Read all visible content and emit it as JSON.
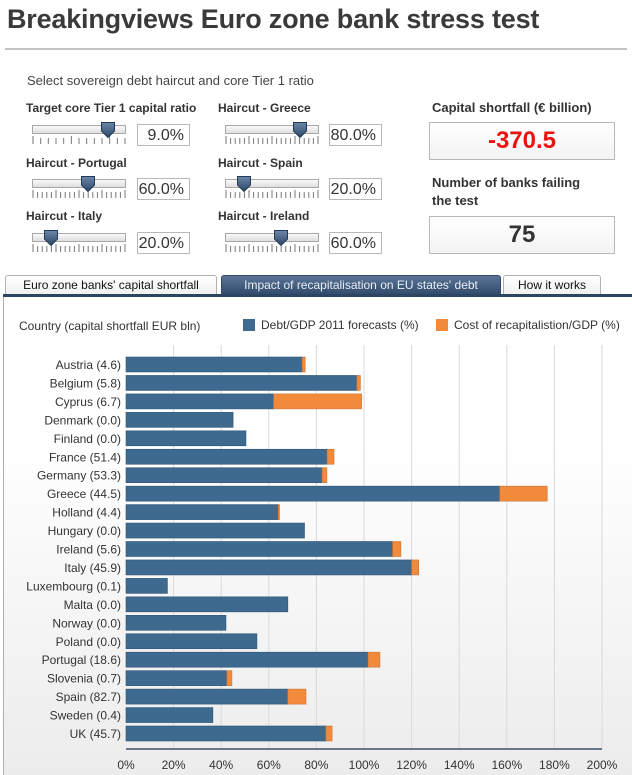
{
  "title": "Breakingviews Euro zone bank stress test",
  "controls": {
    "subtitle": "Select sovereign debt haircut and core Tier 1 ratio",
    "sliders": [
      {
        "label": "Target core Tier 1 capital ratio",
        "value": "9.0%",
        "fraction": 0.81
      },
      {
        "label": "Haircut - Greece",
        "value": "80.0%",
        "fraction": 0.8
      },
      {
        "label": "Haircut - Portugal",
        "value": "60.0%",
        "fraction": 0.6
      },
      {
        "label": "Haircut - Spain",
        "value": "20.0%",
        "fraction": 0.2
      },
      {
        "label": "Haircut - Italy",
        "value": "20.0%",
        "fraction": 0.2
      },
      {
        "label": "Haircut - Ireland",
        "value": "60.0%",
        "fraction": 0.6
      }
    ]
  },
  "results": {
    "shortfall_label": "Capital shortfall (€ billion)",
    "shortfall_value": "-370.5",
    "shortfall_color": "#e8140f",
    "failing_label_line1": "Number of banks failing",
    "failing_label_line2": "the test",
    "failing_value": "75"
  },
  "tabs": [
    {
      "label": "Euro zone banks' capital shortfall",
      "active": false
    },
    {
      "label": "Impact of recapitalisation on EU states' debt",
      "active": true
    },
    {
      "label": "How it works",
      "active": false
    }
  ],
  "colors": {
    "debt": "#3d6a8e",
    "recap": "#f28a3c",
    "accent": "#2f4a6b"
  },
  "chart_data": {
    "type": "bar",
    "orientation": "horizontal",
    "stacked": true,
    "title": "",
    "ylabel": "Country (capital shortfall EUR bln)",
    "xlabel": "",
    "xlim": [
      0,
      200
    ],
    "x_ticks": [
      "0%",
      "20%",
      "40%",
      "60%",
      "80%",
      "100%",
      "120%",
      "140%",
      "160%",
      "180%",
      "200%"
    ],
    "grid": true,
    "legend_position": "top",
    "categories": [
      "Austria (4.6)",
      "Belgium (5.8)",
      "Cyprus (6.7)",
      "Denmark (0.0)",
      "Finland (0.0)",
      "France (51.4)",
      "Germany (53.3)",
      "Greece (44.5)",
      "Holland (4.4)",
      "Hungary (0.0)",
      "Ireland (5.6)",
      "Italy (45.9)",
      "Luxembourg (0.1)",
      "Malta (0.0)",
      "Norway (0.0)",
      "Poland (0.0)",
      "Portugal (18.6)",
      "Slovenia (0.7)",
      "Spain (82.7)",
      "Sweden (0.4)",
      "UK (45.7)"
    ],
    "series": [
      {
        "name": "Debt/GDP 2011 forecasts (%)",
        "values": [
          74,
          97,
          62,
          45,
          50.4,
          84.5,
          82.4,
          157,
          64,
          75,
          112,
          120,
          17.4,
          68,
          42,
          55,
          101.7,
          42.4,
          68,
          36.5,
          84
        ]
      },
      {
        "name": "Cost of recapitalistion/GDP (%)",
        "values": [
          1.3,
          1.5,
          37,
          0,
          0,
          2.9,
          2,
          20,
          0.5,
          0,
          3.5,
          3,
          0,
          0,
          0,
          0,
          5,
          2.1,
          7.6,
          0,
          2.6
        ]
      }
    ]
  }
}
